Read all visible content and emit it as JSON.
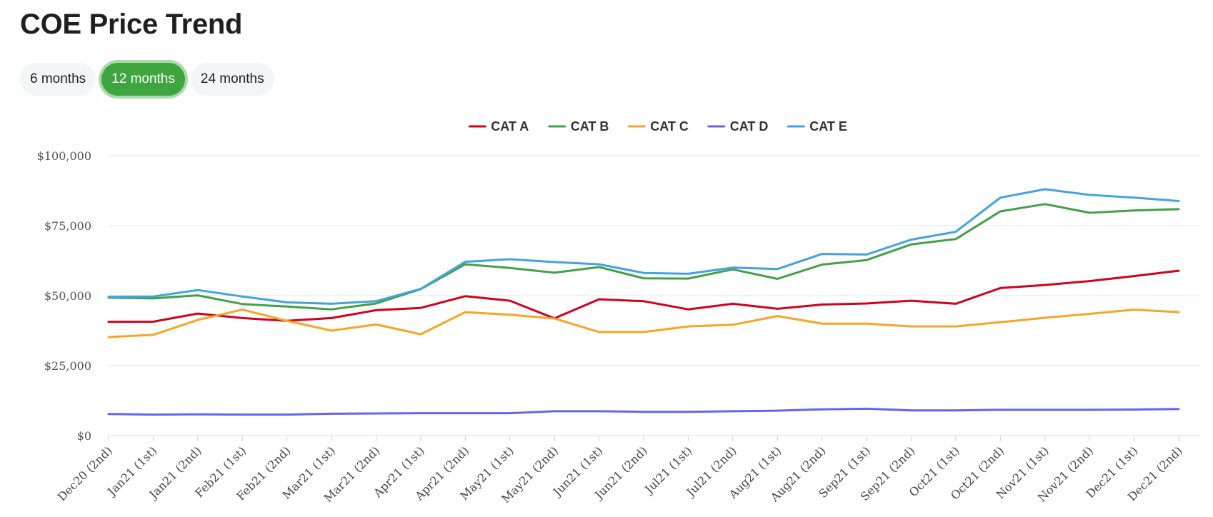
{
  "page": {
    "title": "COE Price Trend"
  },
  "ranges": [
    {
      "label": "6 months",
      "active": false
    },
    {
      "label": "12 months",
      "active": true
    },
    {
      "label": "24 months",
      "active": false
    }
  ],
  "chart_data": {
    "type": "line",
    "title": "",
    "xlabel": "",
    "ylabel": "",
    "ylim": [
      0,
      100000
    ],
    "yticks": [
      {
        "value": 0,
        "label": "$0"
      },
      {
        "value": 25000,
        "label": "$25,000"
      },
      {
        "value": 50000,
        "label": "$50,000"
      },
      {
        "value": 75000,
        "label": "$75,000"
      },
      {
        "value": 100000,
        "label": "$100,000"
      }
    ],
    "grid": true,
    "legend": "top-center",
    "categories": [
      "Dec20 (2nd)",
      "Jan21 (1st)",
      "Jan21 (2nd)",
      "Feb21 (1st)",
      "Feb21 (2nd)",
      "Mar21 (1st)",
      "Mar21 (2nd)",
      "Apr21 (1st)",
      "Apr21 (2nd)",
      "May21 (1st)",
      "May21 (2nd)",
      "Jun21 (1st)",
      "Jun21 (2nd)",
      "Jul21 (1st)",
      "Jul21 (2nd)",
      "Aug21 (1st)",
      "Aug21 (2nd)",
      "Sep21 (1st)",
      "Sep21 (2nd)",
      "Oct21 (1st)",
      "Oct21 (2nd)",
      "Nov21 (1st)",
      "Nov21 (2nd)",
      "Dec21 (1st)",
      "Dec21 (2nd)"
    ],
    "series": [
      {
        "name": "CAT A",
        "color": "#d0021b",
        "values": [
          40600,
          40700,
          43600,
          42000,
          41000,
          42000,
          44800,
          45600,
          49800,
          48200,
          41900,
          48700,
          48000,
          45100,
          47100,
          45300,
          46800,
          47200,
          48200,
          47100,
          52700,
          53800,
          55200,
          57000,
          58900
        ]
      },
      {
        "name": "CAT B",
        "color": "#43a047",
        "values": [
          49300,
          49000,
          50100,
          47000,
          46100,
          45100,
          47200,
          52300,
          61200,
          59900,
          58200,
          60200,
          56200,
          56100,
          59400,
          56000,
          61100,
          62700,
          68300,
          70200,
          80100,
          82700,
          79600,
          80400,
          80900
        ]
      },
      {
        "name": "CAT C",
        "color": "#f5a623",
        "values": [
          35200,
          36000,
          41300,
          45000,
          41000,
          37500,
          39700,
          36200,
          44100,
          43200,
          41800,
          37000,
          37000,
          39000,
          39600,
          42700,
          40000,
          40000,
          39000,
          39000,
          40500,
          42100,
          43500,
          45000,
          44100
        ]
      },
      {
        "name": "CAT D",
        "color": "#6464f0",
        "values": [
          7700,
          7500,
          7600,
          7500,
          7500,
          7800,
          7900,
          8000,
          8000,
          8000,
          8700,
          8700,
          8500,
          8500,
          8700,
          8900,
          9400,
          9600,
          9000,
          9000,
          9200,
          9200,
          9200,
          9300,
          9500
        ]
      },
      {
        "name": "CAT E",
        "color": "#41a4e0",
        "values": [
          49600,
          49700,
          52000,
          49700,
          47600,
          47100,
          48000,
          52400,
          62100,
          63000,
          62000,
          61200,
          58100,
          57800,
          60000,
          59500,
          64900,
          64700,
          70000,
          72800,
          85000,
          88000,
          86000,
          85000,
          83800
        ]
      }
    ]
  }
}
